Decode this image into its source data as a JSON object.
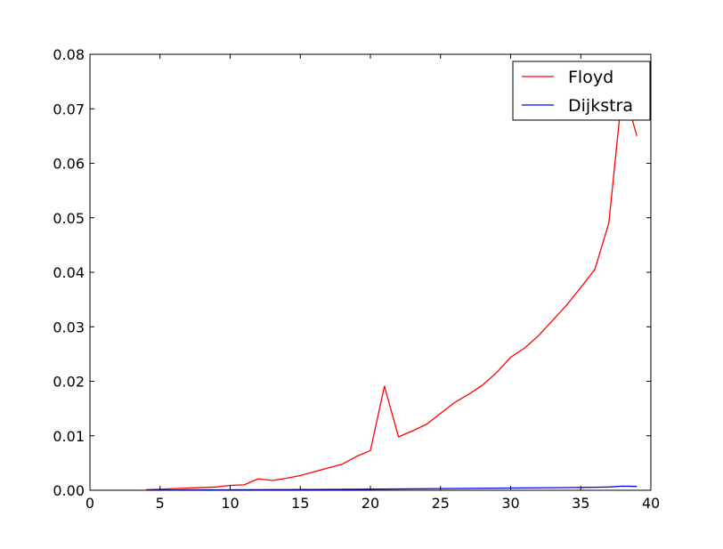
{
  "chart_data": {
    "type": "line",
    "title": "",
    "xlabel": "",
    "ylabel": "",
    "xlim": [
      0,
      40
    ],
    "ylim": [
      0,
      0.08
    ],
    "xticks": [
      0,
      5,
      10,
      15,
      20,
      25,
      30,
      35,
      40
    ],
    "xtick_labels": [
      "0",
      "5",
      "10",
      "15",
      "20",
      "25",
      "30",
      "35",
      "40"
    ],
    "yticks": [
      0,
      0.01,
      0.02,
      0.03,
      0.04,
      0.05,
      0.06,
      0.07,
      0.08
    ],
    "ytick_labels": [
      "0.00",
      "0.01",
      "0.02",
      "0.03",
      "0.04",
      "0.05",
      "0.06",
      "0.07",
      "0.08"
    ],
    "grid": false,
    "legend": {
      "position": "top-right"
    },
    "series": [
      {
        "name": "Floyd",
        "color": "#ff0000",
        "x": [
          4,
          5,
          6,
          7,
          8,
          9,
          10,
          11,
          12,
          13,
          14,
          15,
          16,
          17,
          18,
          19,
          20,
          21,
          22,
          23,
          24,
          25,
          26,
          27,
          28,
          29,
          30,
          31,
          32,
          33,
          34,
          35,
          36,
          37,
          38,
          39
        ],
        "y": [
          0.0001,
          0.0002,
          0.0003,
          0.0004,
          0.0005,
          0.0006,
          0.0009,
          0.001,
          0.0021,
          0.0018,
          0.0022,
          0.0027,
          0.0034,
          0.0041,
          0.0048,
          0.0062,
          0.0073,
          0.0191,
          0.0098,
          0.0109,
          0.0121,
          0.0141,
          0.0161,
          0.0176,
          0.0193,
          0.0216,
          0.0244,
          0.0261,
          0.0284,
          0.0312,
          0.034,
          0.0372,
          0.0405,
          0.049,
          0.0742,
          0.065
        ]
      },
      {
        "name": "Dijkstra",
        "color": "#0000ff",
        "x": [
          4,
          5,
          6,
          7,
          8,
          9,
          10,
          11,
          12,
          13,
          14,
          15,
          16,
          17,
          18,
          19,
          20,
          21,
          22,
          23,
          24,
          25,
          26,
          27,
          28,
          29,
          30,
          31,
          32,
          33,
          34,
          35,
          36,
          37,
          38,
          39
        ],
        "y": [
          2e-05,
          3e-05,
          4e-05,
          5e-05,
          6e-05,
          7e-05,
          8e-05,
          9e-05,
          0.0001,
          0.00011,
          0.00012,
          0.00013,
          0.00014,
          0.00015,
          0.00017,
          0.00019,
          0.00021,
          0.00023,
          0.00025,
          0.00027,
          0.00029,
          0.00031,
          0.00033,
          0.00035,
          0.00037,
          0.00039,
          0.00041,
          0.00043,
          0.00045,
          0.00047,
          0.00049,
          0.00052,
          0.00055,
          0.0006,
          0.00075,
          0.0007
        ]
      }
    ]
  }
}
